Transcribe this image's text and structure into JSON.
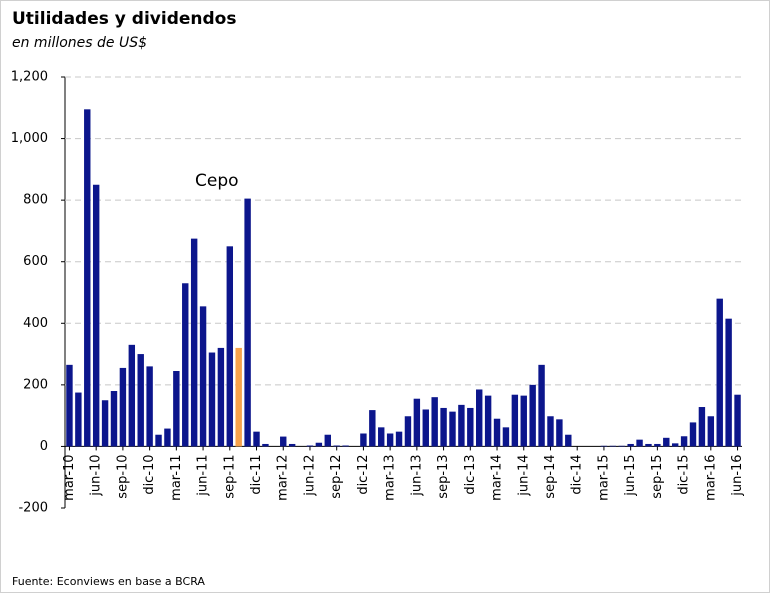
{
  "chart_data": {
    "type": "bar",
    "title": "Utilidades y dividendos",
    "subtitle": "en millones de US$",
    "source": "Fuente:  Econviews en base a BCRA",
    "annotations": [
      {
        "text": "Cepo"
      }
    ],
    "categories": [
      "mar-10",
      null,
      null,
      "jun-10",
      null,
      null,
      "sep-10",
      null,
      null,
      "dic-10",
      null,
      null,
      "mar-11",
      null,
      null,
      "jun-11",
      null,
      null,
      "sep-11",
      null,
      null,
      "dic-11",
      null,
      null,
      "mar-12",
      null,
      null,
      "jun-12",
      null,
      null,
      "sep-12",
      null,
      null,
      "dic-12",
      null,
      null,
      "mar-13",
      null,
      null,
      "jun-13",
      null,
      null,
      "sep-13",
      null,
      null,
      "dic-13",
      null,
      null,
      "mar-14",
      null,
      null,
      "jun-14",
      null,
      null,
      "sep-14",
      null,
      null,
      "dic-14",
      null,
      null,
      "mar-15",
      null,
      null,
      "jun-15",
      null,
      null,
      "sep-15",
      null,
      null,
      "dic-15",
      null,
      null,
      "mar-16",
      null,
      null,
      "jun-16"
    ],
    "values": [
      265,
      175,
      1095,
      850,
      150,
      180,
      255,
      330,
      300,
      260,
      38,
      58,
      245,
      530,
      675,
      455,
      305,
      320,
      650,
      320,
      805,
      48,
      8,
      0,
      32,
      8,
      0,
      3,
      12,
      38,
      3,
      3,
      0,
      42,
      118,
      62,
      42,
      48,
      98,
      155,
      120,
      160,
      125,
      113,
      135,
      125,
      185,
      165,
      90,
      62,
      168,
      165,
      200,
      265,
      98,
      88,
      38,
      0,
      0,
      0,
      2,
      2,
      2,
      8,
      22,
      8,
      8,
      28,
      10,
      33,
      78,
      128,
      98,
      480,
      415,
      168
    ],
    "colors": [
      "#0c168c",
      "#0c168c",
      "#0c168c",
      "#0c168c",
      "#0c168c",
      "#0c168c",
      "#0c168c",
      "#0c168c",
      "#0c168c",
      "#0c168c",
      "#0c168c",
      "#0c168c",
      "#0c168c",
      "#0c168c",
      "#0c168c",
      "#0c168c",
      "#0c168c",
      "#0c168c",
      "#0c168c",
      "#f7a24c",
      "#0c168c",
      "#0c168c",
      "#0c168c",
      "#0c168c",
      "#0c168c",
      "#0c168c",
      "#0c168c",
      "#0c168c",
      "#0c168c",
      "#0c168c",
      "#0c168c",
      "#0c168c",
      "#0c168c",
      "#0c168c",
      "#0c168c",
      "#0c168c",
      "#0c168c",
      "#0c168c",
      "#0c168c",
      "#0c168c",
      "#0c168c",
      "#0c168c",
      "#0c168c",
      "#0c168c",
      "#0c168c",
      "#0c168c",
      "#0c168c",
      "#0c168c",
      "#0c168c",
      "#0c168c",
      "#0c168c",
      "#0c168c",
      "#0c168c",
      "#0c168c",
      "#0c168c",
      "#0c168c",
      "#0c168c",
      "#0c168c",
      "#0c168c",
      "#0c168c",
      "#0c168c",
      "#0c168c",
      "#0c168c",
      "#0c168c",
      "#0c168c",
      "#0c168c",
      "#0c168c",
      "#0c168c",
      "#0c168c",
      "#0c168c",
      "#0c168c",
      "#0c168c",
      "#0c168c",
      "#0c168c",
      "#0c168c",
      "#0c168c"
    ],
    "ylim": [
      -200,
      1200
    ],
    "yticks": [
      -200,
      0,
      200,
      400,
      600,
      800,
      {
        "value": 1000,
        "label": "1,000"
      },
      {
        "value": 1200,
        "label": "1,200"
      }
    ],
    "grid": true
  }
}
